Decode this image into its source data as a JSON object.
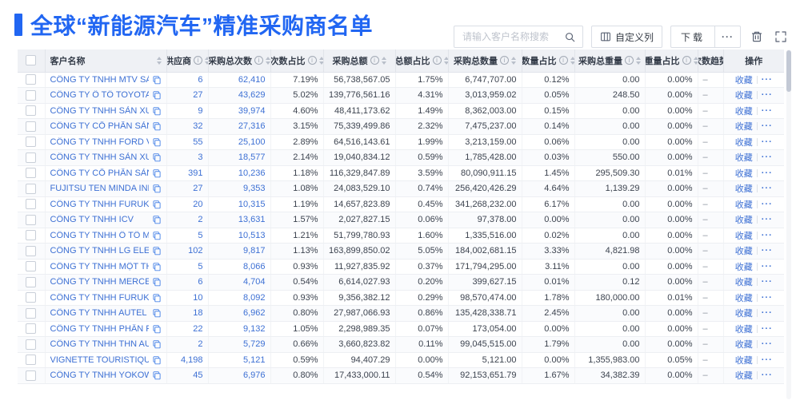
{
  "header": {
    "title": "全球“新能源汽车”精准采购商名单",
    "search_placeholder": "请输入客户名称搜索",
    "customize_columns_label": "自定义列",
    "download_label": "下载",
    "more_label": "···"
  },
  "icons": {
    "search": "magnifier",
    "customize_columns": "columns-grid",
    "download_more": "ellipsis",
    "trash": "trash-can",
    "fullscreen": "expand-corners",
    "info": "circled-i",
    "sort": "caret-up-down",
    "copy": "duplicate-squares"
  },
  "colors": {
    "accent_blue": "#2166f2",
    "link_blue": "#3d70d4",
    "header_bg": "#eff1f5",
    "row_stripe": "#fafbfd",
    "text_dark": "#3c434f"
  },
  "table": {
    "action_header": "操作",
    "favorite_label": "收藏",
    "row_more_label": "···",
    "columns": [
      {
        "key": "name",
        "label": "客户名称",
        "sortable": true,
        "info": false
      },
      {
        "key": "supplier",
        "label": "供应商",
        "sortable": true,
        "info": true
      },
      {
        "key": "purchase_count",
        "label": "采购总次数",
        "sortable": true,
        "info": true
      },
      {
        "key": "count_pct",
        "label": "次数占比",
        "sortable": true,
        "info": true
      },
      {
        "key": "amount",
        "label": "采购总额",
        "sortable": true,
        "info": true
      },
      {
        "key": "amount_pct",
        "label": "总额占比",
        "sortable": true,
        "info": true
      },
      {
        "key": "quantity",
        "label": "采购总数量",
        "sortable": true,
        "info": true
      },
      {
        "key": "quantity_pct",
        "label": "数量占比",
        "sortable": true,
        "info": true
      },
      {
        "key": "weight",
        "label": "采购总重量",
        "sortable": true,
        "info": true
      },
      {
        "key": "weight_pct",
        "label": "重量占比",
        "sortable": true,
        "info": true
      },
      {
        "key": "trend",
        "label": "次数趋势",
        "sortable": false,
        "info": false
      }
    ],
    "rows": [
      {
        "name": "CÔNG TY TNHH MTV SẢN XUẤ...",
        "supplier": "6",
        "purchase_count": "62,410",
        "count_pct": "7.19%",
        "amount": "56,738,567.05",
        "amount_pct": "1.75%",
        "quantity": "6,747,707.00",
        "quantity_pct": "0.12%",
        "weight": "0.00",
        "weight_pct": "0.00%",
        "trend": "–"
      },
      {
        "name": "CÔNG TY Ô TÔ TOYOTA VIỆT ...",
        "supplier": "27",
        "purchase_count": "43,629",
        "count_pct": "5.02%",
        "amount": "139,776,561.16",
        "amount_pct": "4.31%",
        "quantity": "3,013,959.02",
        "quantity_pct": "0.05%",
        "weight": "248.50",
        "weight_pct": "0.00%",
        "trend": "–"
      },
      {
        "name": "CÔNG TY TNHH SẢN XUẤT VÀ ...",
        "supplier": "9",
        "purchase_count": "39,974",
        "count_pct": "4.60%",
        "amount": "48,411,173.62",
        "amount_pct": "1.49%",
        "quantity": "8,362,003.00",
        "quantity_pct": "0.15%",
        "weight": "0.00",
        "weight_pct": "0.00%",
        "trend": "–"
      },
      {
        "name": "CÔNG TY CỔ PHẦN SẢN XUẤT...",
        "supplier": "32",
        "purchase_count": "27,316",
        "count_pct": "3.15%",
        "amount": "75,339,499.86",
        "amount_pct": "2.32%",
        "quantity": "7,475,237.00",
        "quantity_pct": "0.14%",
        "weight": "0.00",
        "weight_pct": "0.00%",
        "trend": "–"
      },
      {
        "name": "CÔNG TY TNHH FORD VIỆT NAM",
        "supplier": "55",
        "purchase_count": "25,100",
        "count_pct": "2.89%",
        "amount": "64,516,143.61",
        "amount_pct": "1.99%",
        "quantity": "3,213,159.00",
        "quantity_pct": "0.06%",
        "weight": "0.00",
        "weight_pct": "0.00%",
        "trend": "–"
      },
      {
        "name": "CÔNG TY TNHH SẢN XUẤT VÀ ...",
        "supplier": "3",
        "purchase_count": "18,577",
        "count_pct": "2.14%",
        "amount": "19,040,834.12",
        "amount_pct": "0.59%",
        "quantity": "1,785,428.00",
        "quantity_pct": "0.03%",
        "weight": "550.00",
        "weight_pct": "0.00%",
        "trend": "–"
      },
      {
        "name": "CÔNG TY CỔ PHẦN SẢN XUẤT...",
        "supplier": "391",
        "purchase_count": "10,236",
        "count_pct": "1.18%",
        "amount": "116,329,847.89",
        "amount_pct": "3.59%",
        "quantity": "80,090,911.15",
        "quantity_pct": "1.45%",
        "weight": "295,509.30",
        "weight_pct": "0.01%",
        "trend": "–"
      },
      {
        "name": "FUJITSU TEN MINDA INDIA PVT...",
        "supplier": "27",
        "purchase_count": "9,353",
        "count_pct": "1.08%",
        "amount": "24,083,529.10",
        "amount_pct": "0.74%",
        "quantity": "256,420,426.29",
        "quantity_pct": "4.64%",
        "weight": "1,139.29",
        "weight_pct": "0.00%",
        "trend": "–"
      },
      {
        "name": "CÔNG TY TNHH FURUKAWA A...",
        "supplier": "20",
        "purchase_count": "10,315",
        "count_pct": "1.19%",
        "amount": "14,657,823.89",
        "amount_pct": "0.45%",
        "quantity": "341,268,232.00",
        "quantity_pct": "6.17%",
        "weight": "0.00",
        "weight_pct": "0.00%",
        "trend": "–"
      },
      {
        "name": "CÔNG TY TNHH ICV",
        "supplier": "2",
        "purchase_count": "13,631",
        "count_pct": "1.57%",
        "amount": "2,027,827.15",
        "amount_pct": "0.06%",
        "quantity": "97,378.00",
        "quantity_pct": "0.00%",
        "weight": "0.00",
        "weight_pct": "0.00%",
        "trend": "–"
      },
      {
        "name": "CÔNG TY TNHH Ô TÔ MITSUBI...",
        "supplier": "5",
        "purchase_count": "10,513",
        "count_pct": "1.21%",
        "amount": "51,799,780.93",
        "amount_pct": "1.60%",
        "quantity": "1,335,516.00",
        "quantity_pct": "0.02%",
        "weight": "0.00",
        "weight_pct": "0.00%",
        "trend": "–"
      },
      {
        "name": "CÔNG TY TNHH LG ELECTRON...",
        "supplier": "102",
        "purchase_count": "9,817",
        "count_pct": "1.13%",
        "amount": "163,899,850.02",
        "amount_pct": "5.05%",
        "quantity": "184,002,681.15",
        "quantity_pct": "3.33%",
        "weight": "4,821.98",
        "weight_pct": "0.00%",
        "trend": "–"
      },
      {
        "name": "CÔNG TY TNHH MỘT THÀNH V...",
        "supplier": "5",
        "purchase_count": "8,066",
        "count_pct": "0.93%",
        "amount": "11,927,835.92",
        "amount_pct": "0.37%",
        "quantity": "171,794,295.00",
        "quantity_pct": "3.11%",
        "weight": "0.00",
        "weight_pct": "0.00%",
        "trend": "–"
      },
      {
        "name": "CÔNG TY TNHH MERCEDES-B...",
        "supplier": "6",
        "purchase_count": "4,704",
        "count_pct": "0.54%",
        "amount": "6,614,027.93",
        "amount_pct": "0.20%",
        "quantity": "399,627.15",
        "quantity_pct": "0.01%",
        "weight": "0.12",
        "weight_pct": "0.00%",
        "trend": "–"
      },
      {
        "name": "CÔNG TY TNHH FURUKAWA A...",
        "supplier": "10",
        "purchase_count": "8,092",
        "count_pct": "0.93%",
        "amount": "9,356,382.12",
        "amount_pct": "0.29%",
        "quantity": "98,570,474.00",
        "quantity_pct": "1.78%",
        "weight": "180,000.00",
        "weight_pct": "0.01%",
        "trend": "–"
      },
      {
        "name": "CÔNG TY TNHH AUTEL VIỆT N...",
        "supplier": "18",
        "purchase_count": "6,962",
        "count_pct": "0.80%",
        "amount": "27,987,066.93",
        "amount_pct": "0.86%",
        "quantity": "135,428,338.71",
        "quantity_pct": "2.45%",
        "weight": "0.00",
        "weight_pct": "0.00%",
        "trend": "–"
      },
      {
        "name": "CÔNG TY TNHH PHÂN PHỐI T...",
        "supplier": "22",
        "purchase_count": "9,132",
        "count_pct": "1.05%",
        "amount": "2,298,989.35",
        "amount_pct": "0.07%",
        "quantity": "173,054.00",
        "quantity_pct": "0.00%",
        "weight": "0.00",
        "weight_pct": "0.00%",
        "trend": "–"
      },
      {
        "name": "CÔNG TY TNHH THN AUTOPAR...",
        "supplier": "2",
        "purchase_count": "5,729",
        "count_pct": "0.66%",
        "amount": "3,660,823.82",
        "amount_pct": "0.11%",
        "quantity": "99,045,515.00",
        "quantity_pct": "1.79%",
        "weight": "0.00",
        "weight_pct": "0.00%",
        "trend": "–"
      },
      {
        "name": "VIGNETTE TOURISTIQUE G UNI...",
        "supplier": "4,198",
        "purchase_count": "5,121",
        "count_pct": "0.59%",
        "amount": "94,407.29",
        "amount_pct": "0.00%",
        "quantity": "5,121.00",
        "quantity_pct": "0.00%",
        "weight": "1,355,983.00",
        "weight_pct": "0.05%",
        "trend": "–"
      },
      {
        "name": "CÔNG TY TNHH YOKOWO VIỆT...",
        "supplier": "45",
        "purchase_count": "6,976",
        "count_pct": "0.80%",
        "amount": "17,433,000.11",
        "amount_pct": "0.54%",
        "quantity": "92,153,651.79",
        "quantity_pct": "1.67%",
        "weight": "34,382.39",
        "weight_pct": "0.00%",
        "trend": "–"
      }
    ]
  }
}
